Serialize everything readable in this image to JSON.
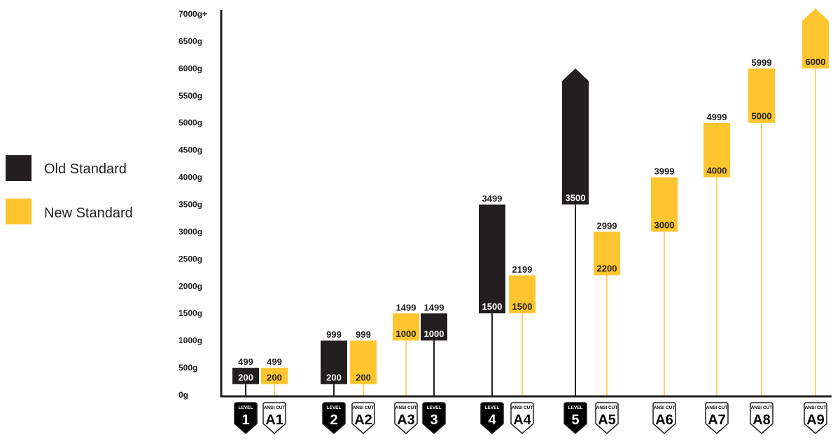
{
  "chart_data": {
    "type": "bar",
    "subtype": "floating-range",
    "title": "",
    "xlabel": "",
    "ylabel": "",
    "ylim": [
      0,
      7000
    ],
    "y_ticks": [
      "0g",
      "500g",
      "1000g",
      "1500g",
      "2000g",
      "2500g",
      "3000g",
      "3500g",
      "4000g",
      "4500g",
      "5000g",
      "5500g",
      "6000g",
      "6500g",
      "7000g+"
    ],
    "legend": {
      "placement": "left",
      "entries": [
        {
          "label": "Old Standard",
          "color": "#231f20"
        },
        {
          "label": "New Standard",
          "color": "#ffc52f"
        }
      ]
    },
    "grid": false,
    "bars": [
      {
        "series": "Old Standard",
        "badge_top": "LEVEL",
        "badge_main": "1",
        "low": 200,
        "high": 499,
        "low_label": "200",
        "high_label": "499",
        "open_top": false
      },
      {
        "series": "New Standard",
        "badge_top": "ANSI CUT",
        "badge_main": "A1",
        "low": 200,
        "high": 499,
        "low_label": "200",
        "high_label": "499",
        "open_top": false
      },
      {
        "series": "Old Standard",
        "badge_top": "LEVEL",
        "badge_main": "2",
        "low": 200,
        "high": 999,
        "low_label": "200",
        "high_label": "999",
        "open_top": false
      },
      {
        "series": "New Standard",
        "badge_top": "ANSI CUT",
        "badge_main": "A2",
        "low": 200,
        "high": 999,
        "low_label": "200",
        "high_label": "999",
        "open_top": false
      },
      {
        "series": "New Standard",
        "badge_top": "ANSI CUT",
        "badge_main": "A3",
        "low": 1000,
        "high": 1499,
        "low_label": "1000",
        "high_label": "1499",
        "open_top": false
      },
      {
        "series": "Old Standard",
        "badge_top": "LEVEL",
        "badge_main": "3",
        "low": 1000,
        "high": 1499,
        "low_label": "1000",
        "high_label": "1499",
        "open_top": false
      },
      {
        "series": "Old Standard",
        "badge_top": "LEVEL",
        "badge_main": "4",
        "low": 1500,
        "high": 3499,
        "low_label": "1500",
        "high_label": "3499",
        "open_top": false
      },
      {
        "series": "New Standard",
        "badge_top": "ANSI CUT",
        "badge_main": "A4",
        "low": 1500,
        "high": 2199,
        "low_label": "1500",
        "high_label": "2199",
        "open_top": false
      },
      {
        "series": "Old Standard",
        "badge_top": "LEVEL",
        "badge_main": "5",
        "low": 3500,
        "high": 6000,
        "low_label": "3500",
        "high_label": "",
        "open_top": true
      },
      {
        "series": "New Standard",
        "badge_top": "ANSI CUT",
        "badge_main": "A5",
        "low": 2200,
        "high": 2999,
        "low_label": "2200",
        "high_label": "2999",
        "open_top": false
      },
      {
        "series": "New Standard",
        "badge_top": "ANSI CUT",
        "badge_main": "A6",
        "low": 3000,
        "high": 3999,
        "low_label": "3000",
        "high_label": "3999",
        "open_top": false
      },
      {
        "series": "New Standard",
        "badge_top": "ANSI CUT",
        "badge_main": "A7",
        "low": 4000,
        "high": 4999,
        "low_label": "4000",
        "high_label": "4999",
        "open_top": false
      },
      {
        "series": "New Standard",
        "badge_top": "ANSI CUT",
        "badge_main": "A8",
        "low": 5000,
        "high": 5999,
        "low_label": "5000",
        "high_label": "5999",
        "open_top": false
      },
      {
        "series": "New Standard",
        "badge_top": "ANSI CUT",
        "badge_main": "A9",
        "low": 6000,
        "high": 7000,
        "low_label": "6000",
        "high_label": "",
        "open_top": true
      }
    ]
  }
}
